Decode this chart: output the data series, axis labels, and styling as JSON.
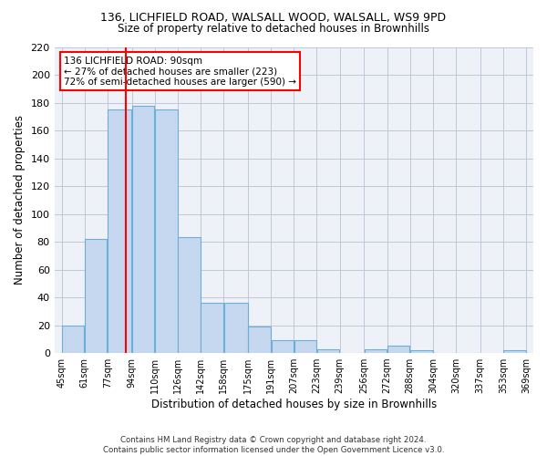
{
  "title1": "136, LICHFIELD ROAD, WALSALL WOOD, WALSALL, WS9 9PD",
  "title2": "Size of property relative to detached houses in Brownhills",
  "xlabel": "Distribution of detached houses by size in Brownhills",
  "ylabel": "Number of detached properties",
  "footnote": "Contains HM Land Registry data © Crown copyright and database right 2024.\nContains public sector information licensed under the Open Government Licence v3.0.",
  "annotation_line1": "136 LICHFIELD ROAD: 90sqm",
  "annotation_line2": "← 27% of detached houses are smaller (223)",
  "annotation_line3": "72% of semi-detached houses are larger (590) →",
  "bar_edges": [
    45,
    61,
    77,
    94,
    110,
    126,
    142,
    158,
    175,
    191,
    207,
    223,
    239,
    256,
    272,
    288,
    304,
    320,
    337,
    353,
    369
  ],
  "bar_heights": [
    20,
    82,
    175,
    178,
    175,
    83,
    36,
    36,
    19,
    9,
    9,
    3,
    0,
    3,
    5,
    2,
    0,
    0,
    0,
    2
  ],
  "bar_color": "#c5d8f0",
  "bar_edgecolor": "#6baed6",
  "red_line_x": 90,
  "ylim": [
    0,
    220
  ],
  "yticks": [
    0,
    20,
    40,
    60,
    80,
    100,
    120,
    140,
    160,
    180,
    200,
    220
  ],
  "grid_color": "#c0c8d8",
  "bg_color": "#eef2f8",
  "xlim_min": 40,
  "xlim_max": 374
}
